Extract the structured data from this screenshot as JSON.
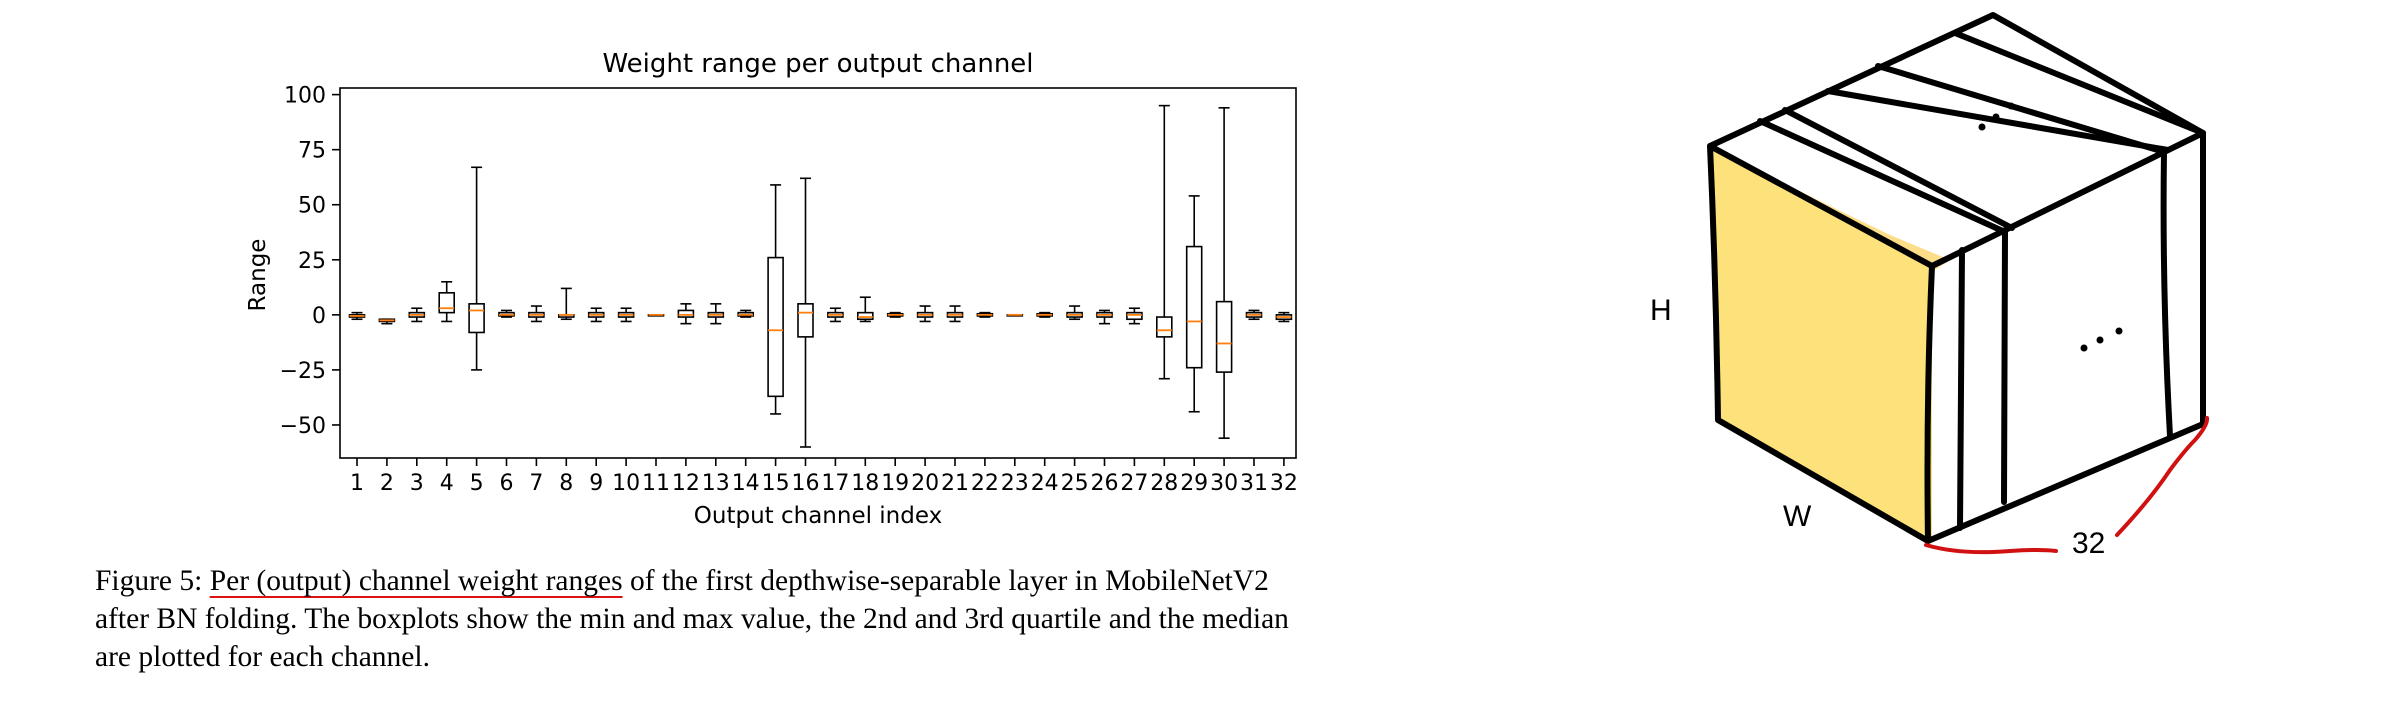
{
  "chart_data": {
    "type": "boxplot",
    "title": "Weight range per output channel",
    "xlabel": "Output channel index",
    "ylabel": "Range",
    "ylim": [
      -65,
      103
    ],
    "yticks": [
      -50,
      -25,
      0,
      25,
      50,
      75,
      100
    ],
    "ytick_labels": [
      "−50",
      "−25",
      "0",
      "25",
      "50",
      "75",
      "100"
    ],
    "categories": [
      "1",
      "2",
      "3",
      "4",
      "5",
      "6",
      "7",
      "8",
      "9",
      "10",
      "11",
      "12",
      "13",
      "14",
      "15",
      "16",
      "17",
      "18",
      "19",
      "20",
      "21",
      "22",
      "23",
      "24",
      "25",
      "26",
      "27",
      "28",
      "29",
      "30",
      "31",
      "32"
    ],
    "boxes": [
      {
        "min": -2,
        "q1": -1,
        "median": -0.5,
        "q3": 0,
        "max": 1
      },
      {
        "min": -4,
        "q1": -3,
        "median": -2.5,
        "q3": -2,
        "max": -2
      },
      {
        "min": -3,
        "q1": -1,
        "median": 0,
        "q3": 1,
        "max": 3
      },
      {
        "min": -3,
        "q1": 1,
        "median": 3,
        "q3": 10,
        "max": 15
      },
      {
        "min": -25,
        "q1": -8,
        "median": 2,
        "q3": 5,
        "max": 67
      },
      {
        "min": -1,
        "q1": -0.5,
        "median": 0,
        "q3": 1,
        "max": 2
      },
      {
        "min": -3,
        "q1": -1,
        "median": 0,
        "q3": 1,
        "max": 4
      },
      {
        "min": -2,
        "q1": -1,
        "median": 0,
        "q3": 0,
        "max": 12
      },
      {
        "min": -3,
        "q1": -1,
        "median": 0,
        "q3": 1,
        "max": 3
      },
      {
        "min": -3,
        "q1": -1,
        "median": 0,
        "q3": 1,
        "max": 3
      },
      {
        "min": 0,
        "q1": 0,
        "median": 0,
        "q3": 0,
        "max": 0
      },
      {
        "min": -4,
        "q1": -1,
        "median": 0,
        "q3": 2,
        "max": 5
      },
      {
        "min": -4,
        "q1": -1,
        "median": 0,
        "q3": 1,
        "max": 5
      },
      {
        "min": -1,
        "q1": -0.5,
        "median": 0,
        "q3": 1,
        "max": 2
      },
      {
        "min": -45,
        "q1": -37,
        "median": -7,
        "q3": 26,
        "max": 59
      },
      {
        "min": -60,
        "q1": -10,
        "median": 1,
        "q3": 5,
        "max": 62
      },
      {
        "min": -3,
        "q1": -1,
        "median": 0,
        "q3": 1,
        "max": 3
      },
      {
        "min": -3,
        "q1": -2,
        "median": -1,
        "q3": 1,
        "max": 8
      },
      {
        "min": -1,
        "q1": -0.5,
        "median": 0,
        "q3": 0.5,
        "max": 1
      },
      {
        "min": -3,
        "q1": -1,
        "median": 0,
        "q3": 1,
        "max": 4
      },
      {
        "min": -3,
        "q1": -1,
        "median": 0,
        "q3": 1,
        "max": 4
      },
      {
        "min": -1,
        "q1": -0.5,
        "median": 0,
        "q3": 0.5,
        "max": 1
      },
      {
        "min": 0,
        "q1": 0,
        "median": 0,
        "q3": 0,
        "max": 0
      },
      {
        "min": -1,
        "q1": -0.5,
        "median": 0,
        "q3": 0.5,
        "max": 1
      },
      {
        "min": -2,
        "q1": -1,
        "median": 0,
        "q3": 1,
        "max": 4
      },
      {
        "min": -4,
        "q1": -1,
        "median": 0,
        "q3": 1,
        "max": 2
      },
      {
        "min": -4,
        "q1": -2,
        "median": 0,
        "q3": 1,
        "max": 3
      },
      {
        "min": -29,
        "q1": -10,
        "median": -7,
        "q3": -1,
        "max": 95
      },
      {
        "min": -44,
        "q1": -24,
        "median": -3,
        "q3": 31,
        "max": 54
      },
      {
        "min": -56,
        "q1": -26,
        "median": -13,
        "q3": 6,
        "max": 94
      },
      {
        "min": -2,
        "q1": -1,
        "median": 0,
        "q3": 1,
        "max": 2
      },
      {
        "min": -3,
        "q1": -2,
        "median": -1,
        "q3": 0,
        "max": 1
      }
    ],
    "grid": false,
    "median_color": "#ff7f0e",
    "box_color": "#000000"
  },
  "caption": {
    "line1_prefix": "Figure 5: ",
    "line1_underlined": "Per (output) channel weight ranges",
    "line1_suffix": " of the first depthwise-separable layer in MobileNetV2",
    "line2": "after BN folding. The boxplots show the min and max value, the 2nd and 3rd quartile and the median",
    "line3": "are plotted for each channel."
  },
  "sketch": {
    "label_h": "H",
    "label_w": "W",
    "label_count": "32",
    "front_face_color": "#fde17a",
    "annotation_color": "#d11111"
  }
}
